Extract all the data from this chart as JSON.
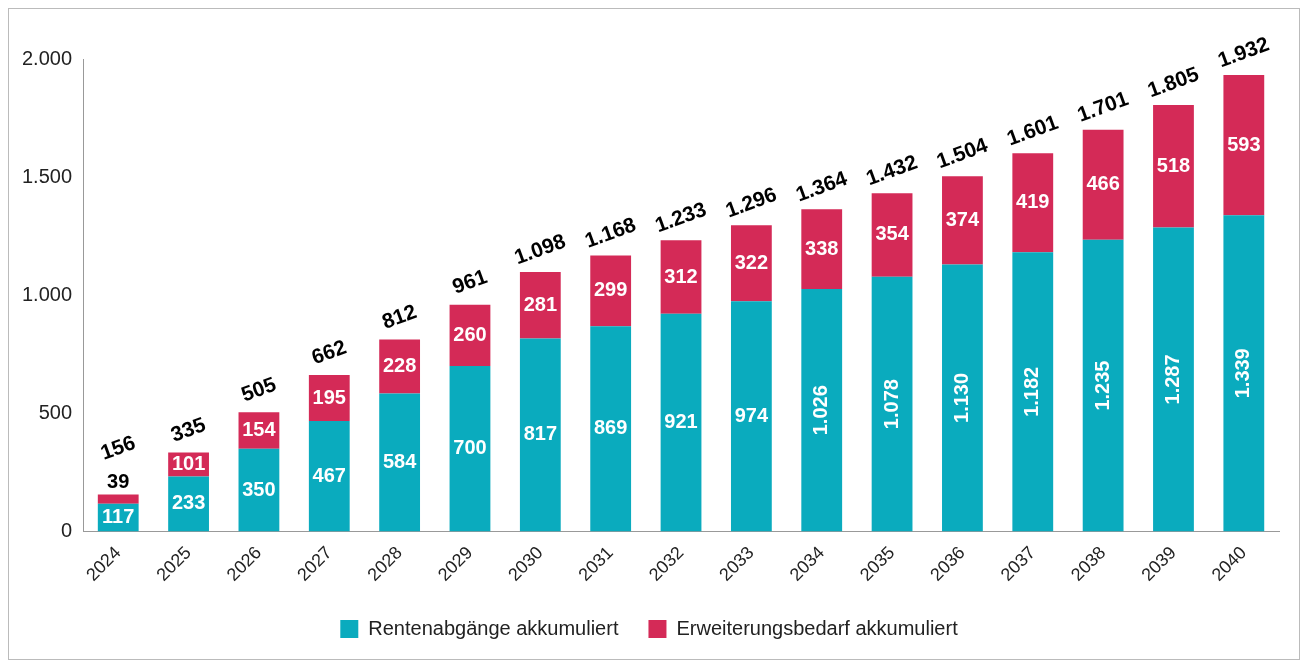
{
  "chart_data": {
    "type": "bar",
    "stacked": true,
    "categories": [
      "2024",
      "2025",
      "2026",
      "2027",
      "2028",
      "2029",
      "2030",
      "2031",
      "2032",
      "2033",
      "2034",
      "2035",
      "2036",
      "2037",
      "2038",
      "2039",
      "2040"
    ],
    "series": [
      {
        "name": "Rentenabgänge akkumuliert",
        "color": "#0aabbe",
        "values": [
          117,
          233,
          350,
          467,
          584,
          700,
          817,
          869,
          921,
          974,
          1026,
          1078,
          1130,
          1182,
          1235,
          1287,
          1339
        ],
        "value_labels": [
          "117",
          "233",
          "350",
          "467",
          "584",
          "700",
          "817",
          "869",
          "921",
          "974",
          "1.026",
          "1.078",
          "1.130",
          "1.182",
          "1.235",
          "1.287",
          "1.339"
        ]
      },
      {
        "name": "Erweiterungsbedarf akkumuliert",
        "color": "#d42a57",
        "values": [
          39,
          101,
          154,
          195,
          228,
          260,
          281,
          299,
          312,
          322,
          338,
          354,
          374,
          419,
          466,
          518,
          593
        ],
        "value_labels": [
          "39",
          "101",
          "154",
          "195",
          "228",
          "260",
          "281",
          "299",
          "312",
          "322",
          "338",
          "354",
          "374",
          "419",
          "466",
          "518",
          "593"
        ]
      }
    ],
    "totals": [
      "156",
      "335",
      "505",
      "662",
      "812",
      "961",
      "1.098",
      "1.168",
      "1.233",
      "1.296",
      "1.364",
      "1.432",
      "1.504",
      "1.601",
      "1.701",
      "1.805",
      "1.932"
    ],
    "ylim": [
      0,
      2000
    ],
    "yticks": [
      0,
      500,
      {
        "value": 1000,
        "label": "1.000"
      },
      {
        "value": 1500,
        "label": "1.500"
      },
      {
        "value": 2000,
        "label": "2.000"
      }
    ],
    "grid": false,
    "legend": "bottom"
  }
}
